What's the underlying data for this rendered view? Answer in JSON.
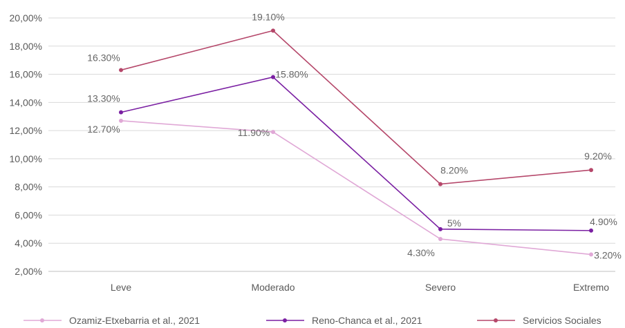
{
  "chart_data": {
    "type": "line",
    "categories": [
      "Leve",
      "Moderado",
      "Severo",
      "Extremo"
    ],
    "y_tick_labels": [
      "2,00%",
      "4,00%",
      "6,00%",
      "8,00%",
      "10,00%",
      "12,00%",
      "14,00%",
      "16,00%",
      "18,00%",
      "20,00%"
    ],
    "ylim": [
      2,
      20
    ],
    "grid": true,
    "legend_position": "bottom",
    "series": [
      {
        "name": "Ozamiz-Etxebarria et al., 2021",
        "color": "#e0a8d6",
        "values": [
          12.7,
          11.9,
          4.3,
          3.2
        ],
        "labels": [
          "12.70%",
          "11.90%",
          "4.30%",
          "3.20%"
        ]
      },
      {
        "name": "Reno-Chanca et al., 2021",
        "color": "#7a1fa2",
        "values": [
          13.3,
          15.8,
          5,
          4.9
        ],
        "labels": [
          "13.30%",
          "15.80%",
          "5%",
          "4.90%"
        ]
      },
      {
        "name": "Servicios Sociales",
        "color": "#b5476a",
        "values": [
          16.3,
          19.1,
          8.2,
          9.2
        ],
        "labels": [
          "16.30%",
          "19.10%",
          "8.20%",
          "9.20%"
        ]
      }
    ]
  }
}
